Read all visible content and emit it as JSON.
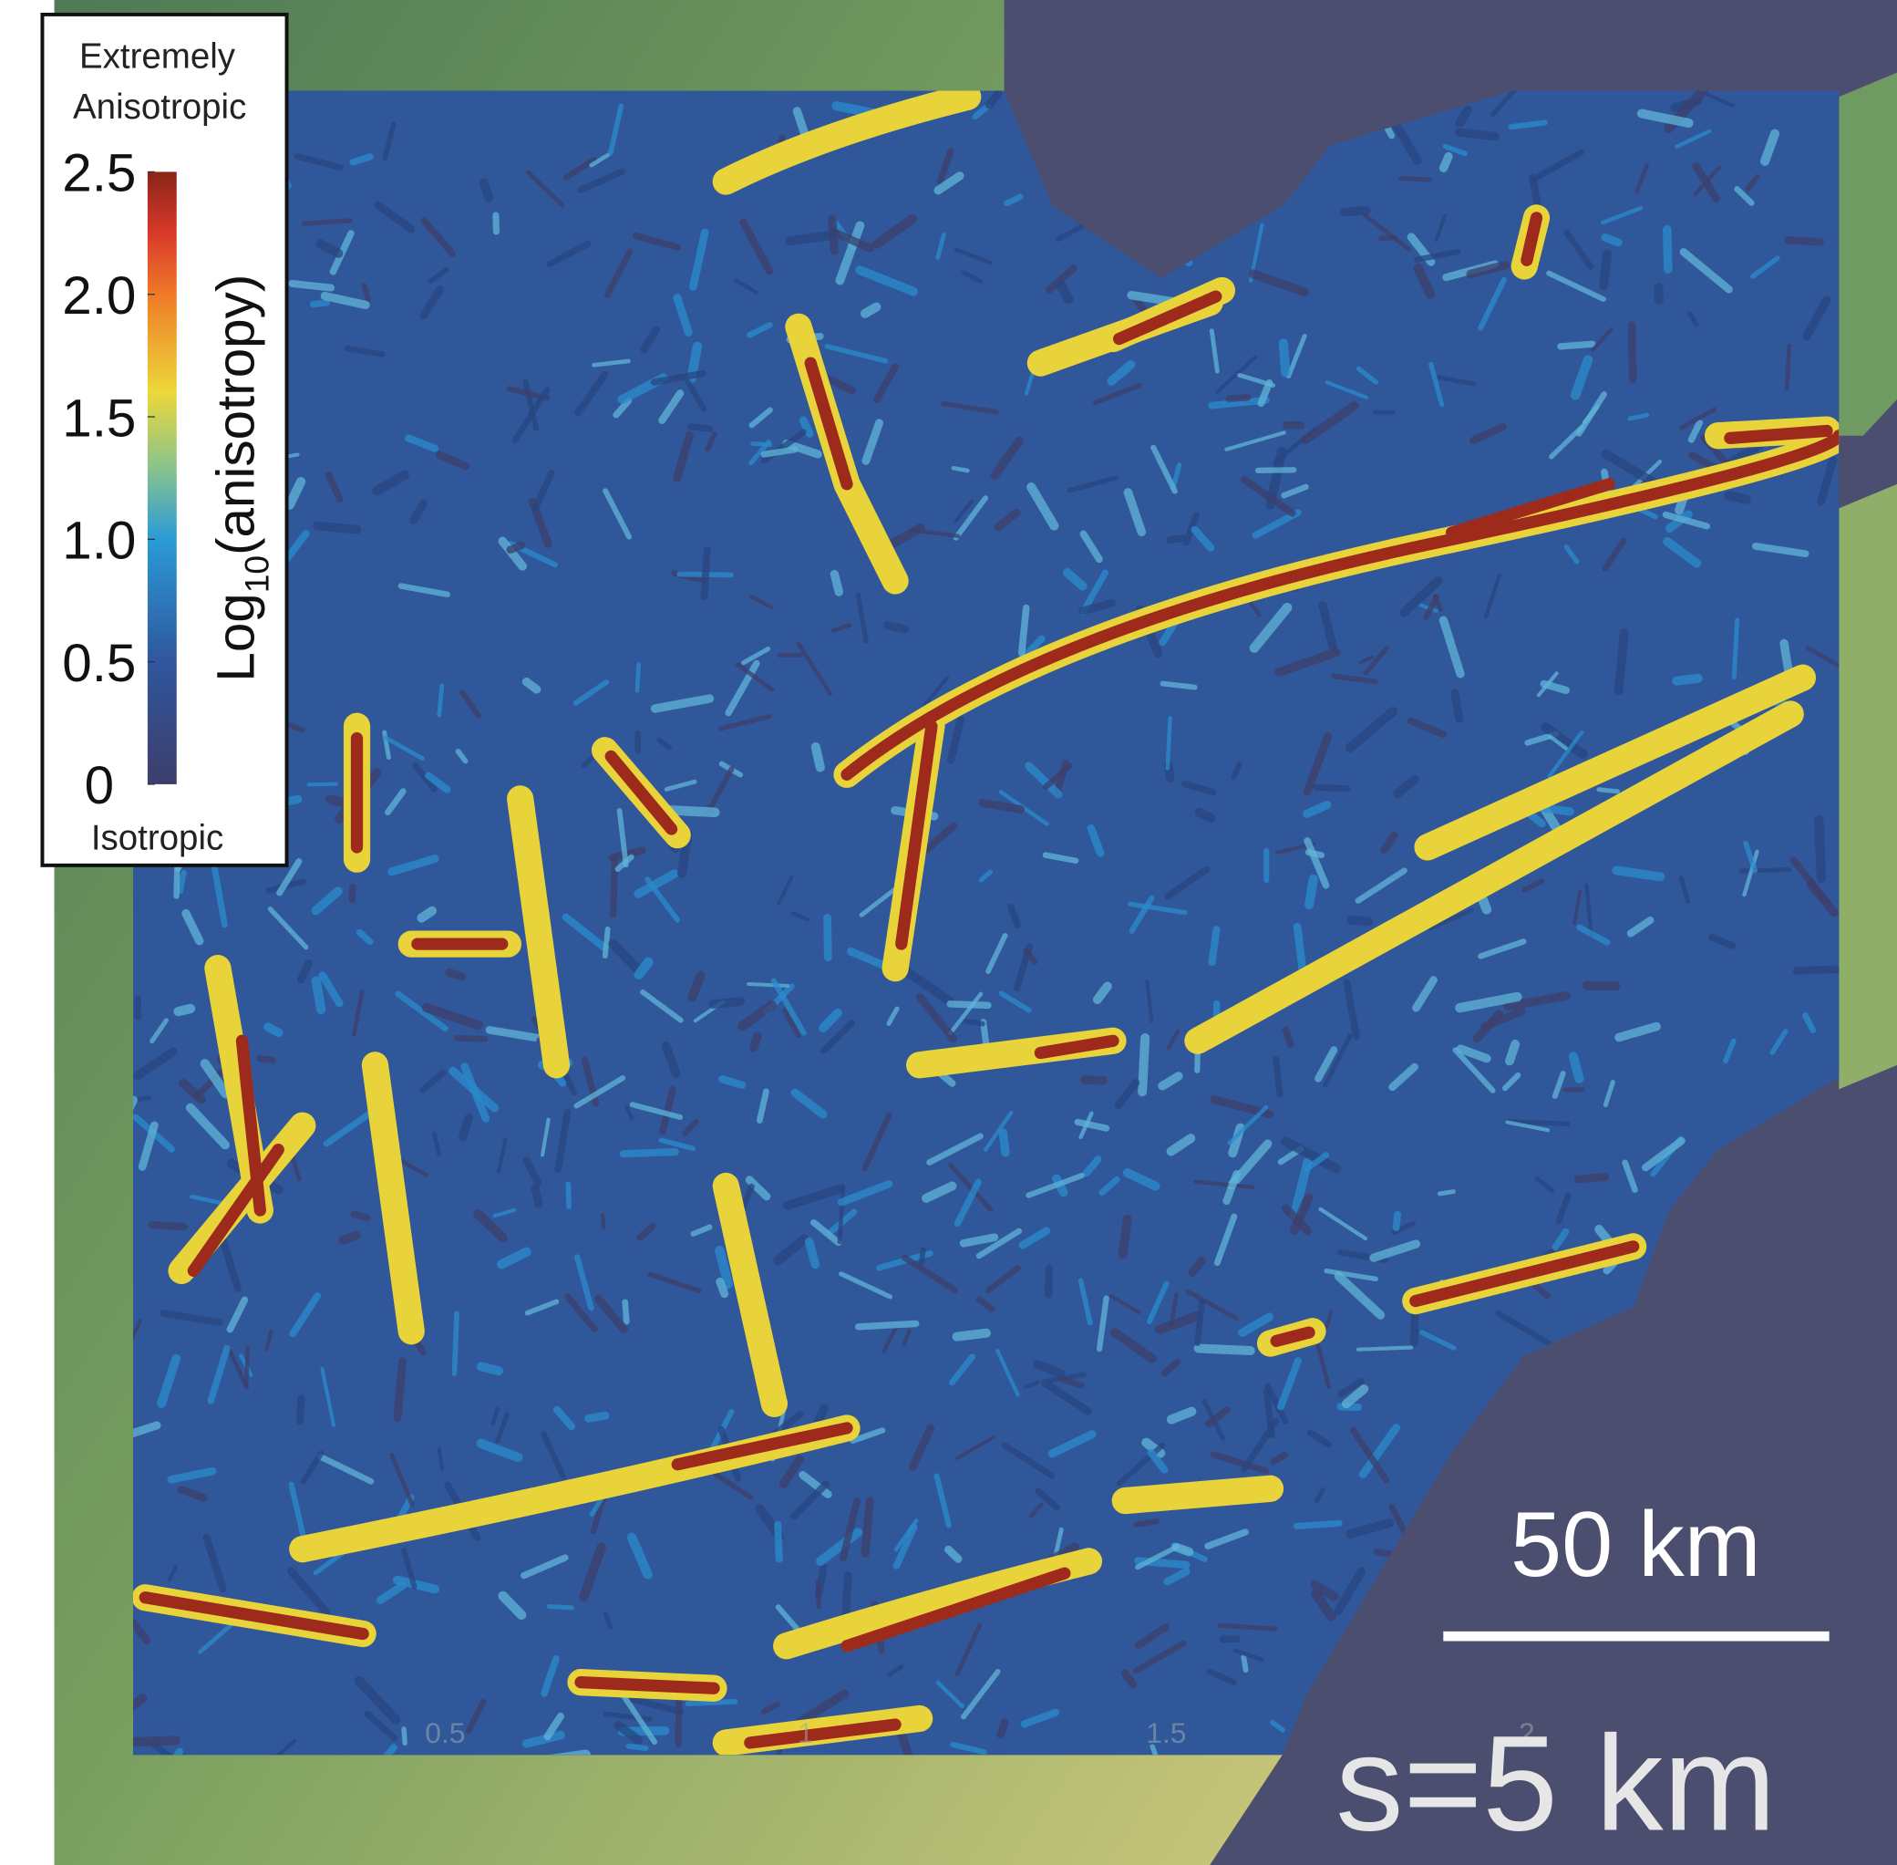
{
  "legend": {
    "title_lines": [
      "Extremely",
      "Anisotropic"
    ],
    "colorbar": {
      "label": {
        "base": "Log",
        "subscript": "10",
        "rest": "(anisotropy)"
      },
      "lim": [
        0,
        2.5
      ],
      "ticks": [
        0,
        {
          "value": 0.5,
          "label": "0.5"
        },
        {
          "value": 1,
          "label": "1.0"
        },
        {
          "value": 1.5,
          "label": "1.5"
        },
        {
          "value": 2,
          "label": "2.0"
        },
        2.5
      ]
    },
    "bottom_label": "Isotropic"
  },
  "scale_bar": {
    "label": "50 km"
  },
  "panel_label": "s=5 km",
  "map_axis_ticks": [
    0.5,
    1,
    1.5,
    2
  ]
}
